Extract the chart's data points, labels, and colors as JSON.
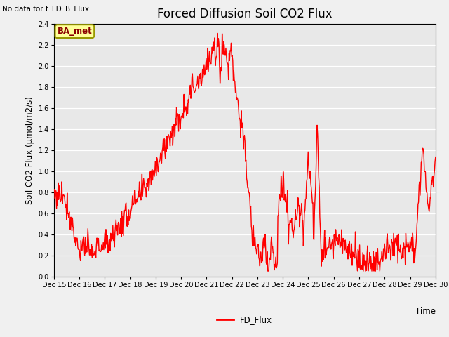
{
  "title": "Forced Diffusion Soil CO2 Flux",
  "top_left_text": "No data for f_FD_B_Flux",
  "ylabel": "Soil CO2 Flux (μmol/m2/s)",
  "xlabel": "Time",
  "ylim": [
    0.0,
    2.4
  ],
  "yticks": [
    0.0,
    0.2,
    0.4,
    0.6,
    0.8,
    1.0,
    1.2,
    1.4,
    1.6,
    1.8,
    2.0,
    2.2,
    2.4
  ],
  "line_color": "#FF0000",
  "line_width": 1.0,
  "legend_label": "FD_Flux",
  "bg_color": "#E8E8E8",
  "box_label": "BA_met",
  "box_facecolor": "#FFFF99",
  "box_edgecolor": "#999900",
  "grid_color": "#FFFFFF",
  "title_fontsize": 12,
  "label_fontsize": 8.5,
  "tick_fontsize": 7,
  "xtick_labels": [
    "Dec 15",
    "Dec 16",
    "Dec 17",
    "Dec 18",
    "Dec 19",
    "Dec 20",
    "Dec 21",
    "Dec 22",
    "Dec 23",
    "Dec 24",
    "Dec 25",
    "Dec 26",
    "Dec 27",
    "Dec 28",
    "Dec 29",
    "Dec 30"
  ]
}
